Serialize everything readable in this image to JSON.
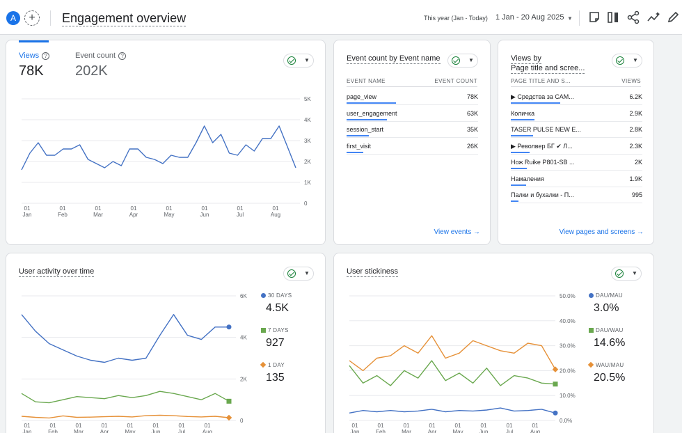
{
  "header": {
    "avatar_letter": "A",
    "add_symbol": "+",
    "title": "Engagement overview",
    "date_label": "This year (Jan - Today)",
    "date_range": "1 Jan - 20 Aug 2025",
    "icons": [
      "note-icon",
      "compare-icon",
      "share-icon",
      "insights-icon",
      "edit-icon"
    ]
  },
  "views_card": {
    "metrics": [
      {
        "label": "Views",
        "value": "78K",
        "color": "#1a73e8"
      },
      {
        "label": "Event count",
        "value": "202K",
        "color": "#5f6368"
      }
    ],
    "help_symbol": "?",
    "y_ticks": [
      "5K",
      "4K",
      "3K",
      "2K",
      "1K",
      "0"
    ],
    "x_ticks": [
      [
        "01",
        "Jan"
      ],
      [
        "01",
        "Feb"
      ],
      [
        "01",
        "Mar"
      ],
      [
        "01",
        "Apr"
      ],
      [
        "01",
        "May"
      ],
      [
        "01",
        "Jun"
      ],
      [
        "01",
        "Jul"
      ],
      [
        "01",
        "Aug"
      ]
    ]
  },
  "event_card": {
    "title": "Event count by Event name",
    "col_name": "EVENT NAME",
    "col_value": "EVENT COUNT",
    "rows": [
      {
        "name": "page_view",
        "value": "78K",
        "share": 0.95
      },
      {
        "name": "user_engagement",
        "value": "63K",
        "share": 0.77
      },
      {
        "name": "session_start",
        "value": "35K",
        "share": 0.43
      },
      {
        "name": "first_visit",
        "value": "26K",
        "share": 0.32
      }
    ],
    "link": "View events",
    "link_arrow": "→"
  },
  "pages_card": {
    "title_line1": "Views by",
    "title_line2": "Page title and scree...",
    "col_name": "PAGE TITLE AND S...",
    "col_value": "VIEWS",
    "rows": [
      {
        "name": "▶ Средства за САМ...",
        "value": "6.2K",
        "share": 0.95
      },
      {
        "name": "Количка",
        "value": "2.9K",
        "share": 0.45
      },
      {
        "name": "TASER PULSE NEW E...",
        "value": "2.8K",
        "share": 0.43
      },
      {
        "name": "▶ Револвер БГ ✔ Л...",
        "value": "2.3K",
        "share": 0.36
      },
      {
        "name": "Нож Ruike P801-SB ...",
        "value": "2K",
        "share": 0.31
      },
      {
        "name": "Намаления",
        "value": "1.9K",
        "share": 0.29
      },
      {
        "name": "Палки и бухалки - П...",
        "value": "995",
        "share": 0.15
      }
    ],
    "link": "View pages and screens",
    "link_arrow": "→"
  },
  "activity_card": {
    "title": "User activity over time",
    "y_ticks": [
      "6K",
      "4K",
      "2K",
      "0"
    ],
    "x_ticks": [
      [
        "01",
        "Jan"
      ],
      [
        "01",
        "Feb"
      ],
      [
        "01",
        "Mar"
      ],
      [
        "01",
        "Apr"
      ],
      [
        "01",
        "May"
      ],
      [
        "01",
        "Jun"
      ],
      [
        "01",
        "Jul"
      ],
      [
        "01",
        "Aug"
      ]
    ],
    "legend": [
      {
        "label": "30 DAYS",
        "value": "4.5K",
        "color": "#4472c4",
        "shape": "circle"
      },
      {
        "label": "7 DAYS",
        "value": "927",
        "color": "#6aa84f",
        "shape": "square"
      },
      {
        "label": "1 DAY",
        "value": "135",
        "color": "#e69138",
        "shape": "diamond"
      }
    ]
  },
  "stickiness_card": {
    "title": "User stickiness",
    "y_ticks": [
      "50.0%",
      "40.0%",
      "30.0%",
      "20.0%",
      "10.0%",
      "0.0%"
    ],
    "x_ticks": [
      [
        "01",
        "Jan"
      ],
      [
        "01",
        "Feb"
      ],
      [
        "01",
        "Mar"
      ],
      [
        "01",
        "Apr"
      ],
      [
        "01",
        "May"
      ],
      [
        "01",
        "Jun"
      ],
      [
        "01",
        "Jul"
      ],
      [
        "01",
        "Aug"
      ]
    ],
    "legend": [
      {
        "label": "DAU/MAU",
        "value": "3.0%",
        "color": "#4472c4",
        "shape": "circle"
      },
      {
        "label": "DAU/WAU",
        "value": "14.6%",
        "color": "#6aa84f",
        "shape": "square"
      },
      {
        "label": "WAU/MAU",
        "value": "20.5%",
        "color": "#e69138",
        "shape": "diamond"
      }
    ]
  },
  "chart_data": [
    {
      "type": "line",
      "ylim": [
        0,
        5000
      ],
      "x": [
        "2025-01-01",
        "2025-01-08",
        "2025-01-15",
        "2025-01-22",
        "2025-01-29",
        "2025-02-05",
        "2025-02-12",
        "2025-02-19",
        "2025-02-26",
        "2025-03-05",
        "2025-03-12",
        "2025-03-19",
        "2025-03-26",
        "2025-04-02",
        "2025-04-09",
        "2025-04-16",
        "2025-04-23",
        "2025-04-30",
        "2025-05-07",
        "2025-05-14",
        "2025-05-21",
        "2025-05-28",
        "2025-06-04",
        "2025-06-11",
        "2025-06-18",
        "2025-06-25",
        "2025-07-02",
        "2025-07-09",
        "2025-07-16",
        "2025-07-23",
        "2025-07-30",
        "2025-08-06",
        "2025-08-13",
        "2025-08-20"
      ],
      "series": [
        {
          "name": "Views",
          "values": [
            1600,
            2400,
            2900,
            2300,
            2300,
            2600,
            2600,
            2800,
            2100,
            1900,
            1700,
            2000,
            1800,
            2600,
            2600,
            2200,
            2100,
            1900,
            2300,
            2200,
            2200,
            2900,
            3700,
            2900,
            3300,
            2400,
            2300,
            2800,
            2500,
            3100,
            3100,
            3700,
            2700,
            1700
          ]
        }
      ]
    },
    {
      "type": "line",
      "ylim": [
        0,
        6000
      ],
      "x": [
        "2025-01-01",
        "2025-01-15",
        "2025-02-01",
        "2025-02-15",
        "2025-03-01",
        "2025-03-15",
        "2025-04-01",
        "2025-04-15",
        "2025-05-01",
        "2025-05-15",
        "2025-06-01",
        "2025-06-15",
        "2025-07-01",
        "2025-07-15",
        "2025-08-01",
        "2025-08-20"
      ],
      "series": [
        {
          "name": "30 DAYS",
          "values": [
            5100,
            4300,
            3700,
            3400,
            3100,
            2900,
            2800,
            3000,
            2900,
            3000,
            4100,
            5100,
            4100,
            3900,
            4500,
            4500
          ]
        },
        {
          "name": "7 DAYS",
          "values": [
            1300,
            900,
            850,
            1000,
            1150,
            1100,
            1050,
            1200,
            1100,
            1200,
            1400,
            1300,
            1150,
            1000,
            1300,
            927
          ]
        },
        {
          "name": "1 DAY",
          "values": [
            200,
            150,
            120,
            220,
            150,
            160,
            180,
            200,
            170,
            230,
            250,
            230,
            190,
            170,
            200,
            135
          ]
        }
      ]
    },
    {
      "type": "line",
      "ylim": [
        0,
        50
      ],
      "x": [
        "2025-01-01",
        "2025-01-15",
        "2025-02-01",
        "2025-02-15",
        "2025-03-01",
        "2025-03-15",
        "2025-04-01",
        "2025-04-15",
        "2025-05-01",
        "2025-05-15",
        "2025-06-01",
        "2025-06-15",
        "2025-07-01",
        "2025-07-15",
        "2025-08-01",
        "2025-08-20"
      ],
      "series": [
        {
          "name": "DAU/MAU",
          "values": [
            3,
            4,
            3.5,
            4,
            3.5,
            3.8,
            4.5,
            3.5,
            4,
            3.8,
            4.2,
            5,
            3.8,
            4,
            4.5,
            3.0
          ]
        },
        {
          "name": "DAU/WAU",
          "values": [
            22,
            15,
            18,
            14,
            20,
            17,
            24,
            16,
            19,
            15,
            21,
            14,
            18,
            17,
            15,
            14.6
          ]
        },
        {
          "name": "WAU/MAU",
          "values": [
            24,
            20,
            25,
            26,
            30,
            27,
            34,
            25,
            27,
            32,
            30,
            28,
            27,
            31,
            30,
            20.5
          ]
        }
      ]
    }
  ]
}
